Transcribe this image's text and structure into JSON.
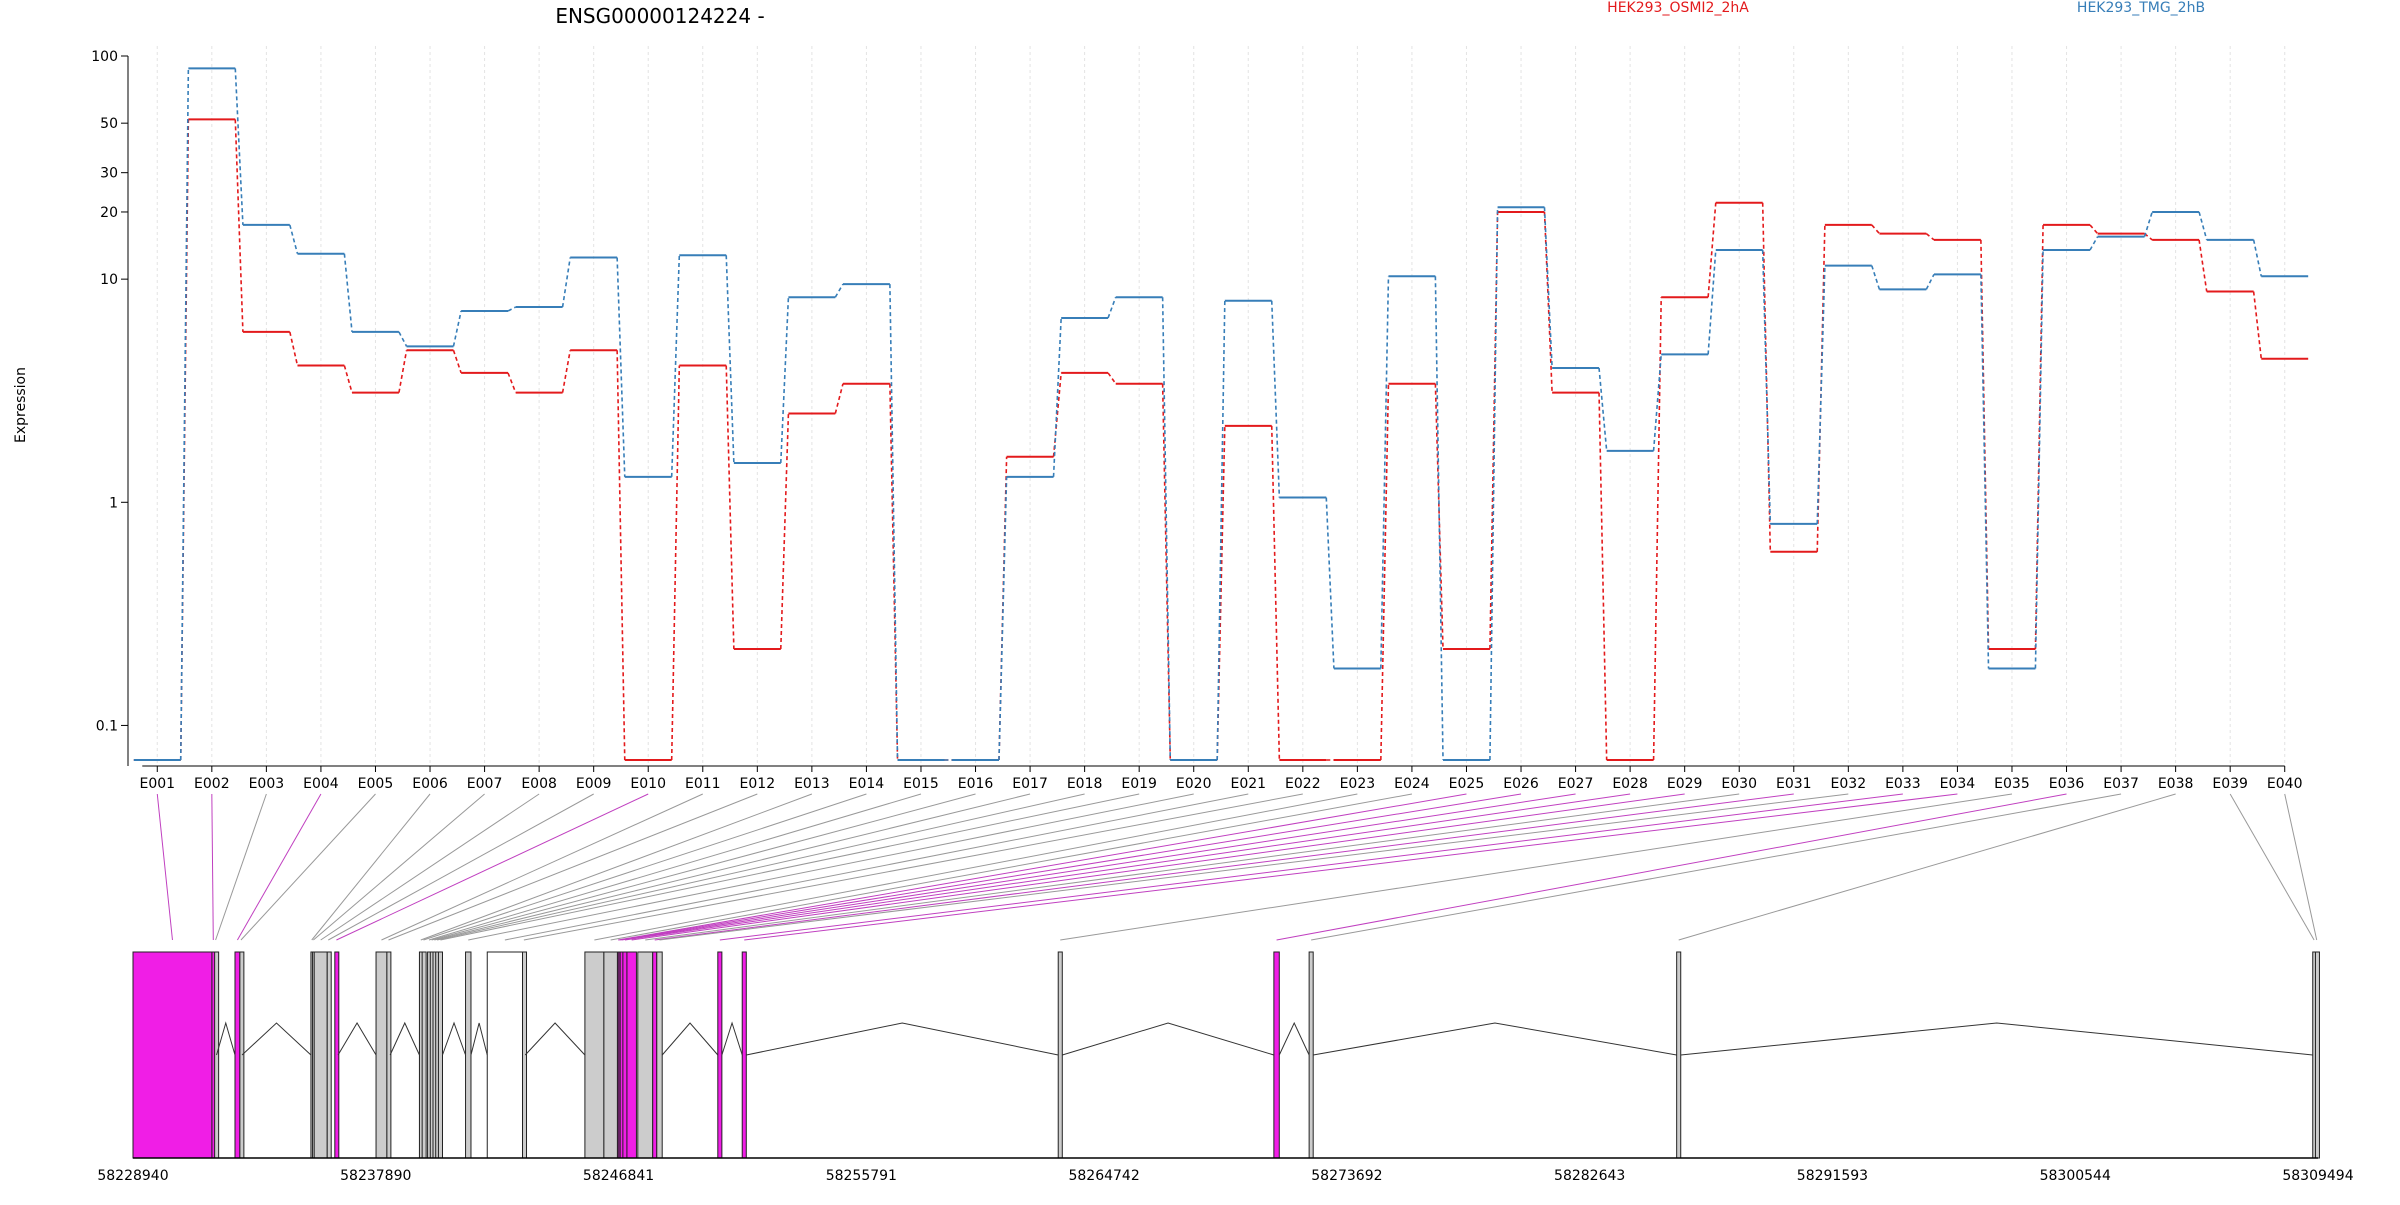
{
  "chart_data": [
    {
      "type": "line",
      "title": "ENSG00000124224 -",
      "ylabel": "Expression",
      "xlabel": "",
      "y_scale": "log",
      "ylim": [
        0.07,
        100
      ],
      "y_ticks": [
        0.1,
        1,
        10,
        20,
        30,
        50,
        100
      ],
      "y_tick_labels": [
        "0.1",
        "1",
        "10",
        "20",
        "30",
        "50",
        "100"
      ],
      "grid": "vertical dashed at each exon",
      "legend": "top-right",
      "categories": [
        "E001",
        "E002",
        "E003",
        "E004",
        "E005",
        "E006",
        "E007",
        "E008",
        "E009",
        "E010",
        "E011",
        "E012",
        "E013",
        "E014",
        "E015",
        "E016",
        "E017",
        "E018",
        "E019",
        "E020",
        "E021",
        "E022",
        "E023",
        "E024",
        "E025",
        "E026",
        "E027",
        "E028",
        "E029",
        "E030",
        "E031",
        "E032",
        "E033",
        "E034",
        "E035",
        "E036",
        "E037",
        "E038",
        "E039",
        "E040"
      ],
      "series": [
        {
          "name": "HEK293_OSMI2_2hA",
          "color": "#e31a1c",
          "values": [
            0.07,
            52,
            5.8,
            4.1,
            3.1,
            4.8,
            3.8,
            3.1,
            4.8,
            0.07,
            4.1,
            0.22,
            2.5,
            3.4,
            0.07,
            0.07,
            1.6,
            3.8,
            3.4,
            0.07,
            2.2,
            0.07,
            0.07,
            3.4,
            0.22,
            20,
            3.1,
            0.07,
            8.3,
            22,
            0.6,
            17.5,
            16,
            15,
            0.22,
            17.5,
            16,
            15,
            8.8,
            4.4
          ]
        },
        {
          "name": "HEK293_TMG_2hB",
          "color": "#377eb8",
          "values": [
            0.07,
            88,
            17.5,
            13,
            5.8,
            5,
            7.2,
            7.5,
            12.5,
            1.3,
            12.8,
            1.5,
            8.3,
            9.5,
            0.07,
            0.07,
            1.3,
            6.7,
            8.3,
            0.07,
            8,
            1.05,
            0.18,
            10.3,
            0.07,
            21,
            4,
            1.7,
            4.6,
            13.5,
            0.8,
            11.5,
            9,
            10.5,
            0.18,
            13.5,
            15.5,
            20,
            15,
            10.3
          ]
        }
      ]
    },
    {
      "type": "gene_model",
      "x_scale": "genomic",
      "xlim": [
        58228940,
        58309494
      ],
      "x_ticks": [
        58228940,
        58237890,
        58246841,
        58255791,
        58264742,
        58273692,
        58282643,
        58291593,
        58300544,
        58309494
      ],
      "x_tick_labels": [
        "58228940",
        "58237890",
        "58246841",
        "58255791",
        "58264742",
        "58273692",
        "58282643",
        "58291593",
        "58300544",
        "58309494"
      ],
      "highlight_color": "#f01ee6",
      "exons": [
        {
          "id": "E001",
          "start": 58228940,
          "end": 58231850,
          "highlight": true
        },
        {
          "id": "E002",
          "start": 58231850,
          "end": 58231950,
          "highlight": true
        },
        {
          "id": "E003",
          "start": 58231950,
          "end": 58232020,
          "highlight": false
        },
        {
          "id": "E004",
          "start": 58232700,
          "end": 58232880,
          "highlight": true
        },
        {
          "id": "E005",
          "start": 58232880,
          "end": 58232960,
          "highlight": false
        },
        {
          "id": "E006",
          "start": 58235500,
          "end": 58235560,
          "highlight": false
        },
        {
          "id": "E007",
          "start": 58235560,
          "end": 58235620,
          "highlight": false
        },
        {
          "id": "E008",
          "start": 58235620,
          "end": 58236100,
          "highlight": false
        },
        {
          "id": "E009",
          "start": 58236100,
          "end": 58236180,
          "highlight": false
        },
        {
          "id": "E010",
          "start": 58236380,
          "end": 58236500,
          "highlight": true
        },
        {
          "id": "E011",
          "start": 58237900,
          "end": 58238300,
          "highlight": false
        },
        {
          "id": "E012",
          "start": 58238300,
          "end": 58238420,
          "highlight": false
        },
        {
          "id": "E013",
          "start": 58239500,
          "end": 58239600,
          "highlight": false
        },
        {
          "id": "E014",
          "start": 58239600,
          "end": 58239700,
          "highlight": false
        },
        {
          "id": "E015",
          "start": 58239800,
          "end": 58239900,
          "highlight": false
        },
        {
          "id": "E016",
          "start": 58239900,
          "end": 58240000,
          "highlight": false
        },
        {
          "id": "E017",
          "start": 58240000,
          "end": 58240100,
          "highlight": false
        },
        {
          "id": "E018",
          "start": 58240100,
          "end": 58240200,
          "highlight": false
        },
        {
          "id": "E019",
          "start": 58240200,
          "end": 58240350,
          "highlight": false
        },
        {
          "id": "E020",
          "start": 58241200,
          "end": 58241400,
          "highlight": false
        },
        {
          "id": "E021",
          "start": 58242000,
          "end": 58243300,
          "highlight": false
        },
        {
          "id": "E022",
          "start": 58243300,
          "end": 58243400,
          "highlight": false
        },
        {
          "id": "E023",
          "start": 58245600,
          "end": 58246300,
          "highlight": false
        },
        {
          "id": "E024",
          "start": 58246300,
          "end": 58246800,
          "highlight": false
        },
        {
          "id": "E025",
          "start": 58246800,
          "end": 58246850,
          "highlight": true
        },
        {
          "id": "E026",
          "start": 58246850,
          "end": 58246900,
          "highlight": true
        },
        {
          "id": "E027",
          "start": 58246900,
          "end": 58247000,
          "highlight": true
        },
        {
          "id": "E028",
          "start": 58247000,
          "end": 58247150,
          "highlight": true
        },
        {
          "id": "E029",
          "start": 58247150,
          "end": 58247500,
          "highlight": true
        },
        {
          "id": "E030",
          "start": 58247550,
          "end": 58248100,
          "highlight": false
        },
        {
          "id": "E031",
          "start": 58248100,
          "end": 58248250,
          "highlight": true
        },
        {
          "id": "E032",
          "start": 58248250,
          "end": 58248450,
          "highlight": false
        },
        {
          "id": "E033",
          "start": 58250500,
          "end": 58250650,
          "highlight": true
        },
        {
          "id": "E034",
          "start": 58251400,
          "end": 58251550,
          "highlight": true
        },
        {
          "id": "E035",
          "start": 58263050,
          "end": 58263200,
          "highlight": false
        },
        {
          "id": "E036",
          "start": 58271000,
          "end": 58271200,
          "highlight": true
        },
        {
          "id": "E037",
          "start": 58272300,
          "end": 58272450,
          "highlight": false
        },
        {
          "id": "E038",
          "start": 58285850,
          "end": 58286000,
          "highlight": false
        },
        {
          "id": "E039",
          "start": 58309300,
          "end": 58309400,
          "highlight": false
        },
        {
          "id": "E040",
          "start": 58309400,
          "end": 58309494,
          "highlight": false
        }
      ]
    }
  ]
}
